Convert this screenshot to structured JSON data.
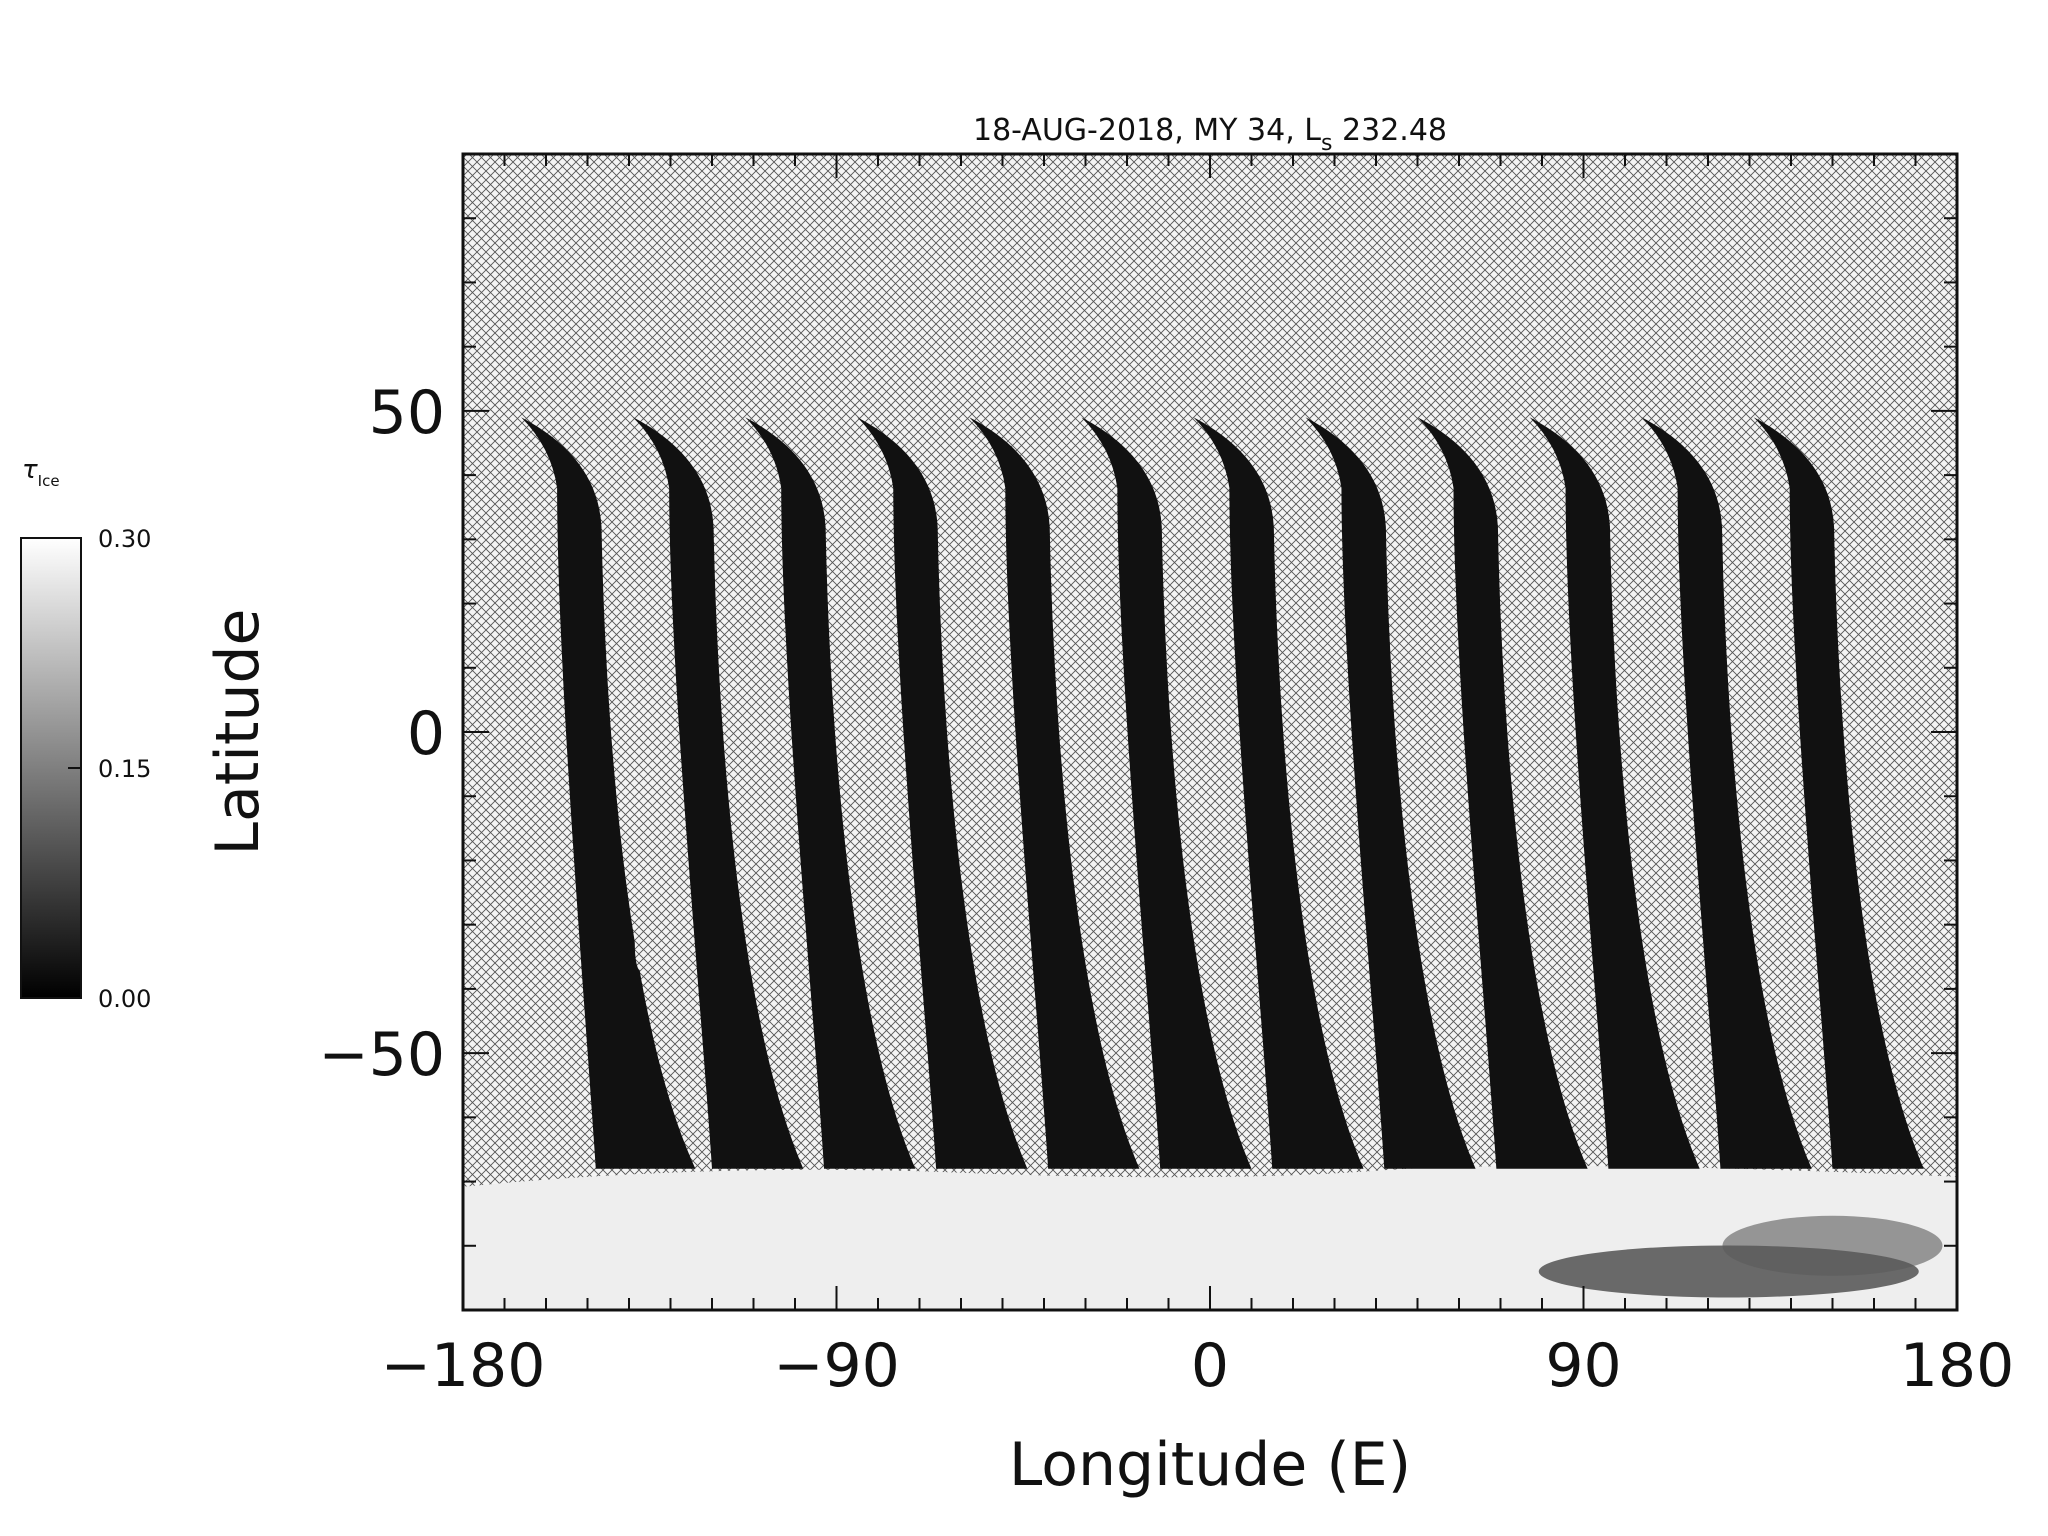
{
  "chart_data": {
    "type": "heatmap",
    "title": "18-AUG-2018, MY 34,  L",
    "title_sub": "s",
    "title_tail": " 232.48",
    "xlabel": "Longitude (E)",
    "ylabel": "Latitude",
    "xlim": [
      -180,
      180
    ],
    "ylim": [
      -90,
      90
    ],
    "x_ticks": [
      -180,
      -90,
      0,
      90,
      180
    ],
    "x_tick_labels": [
      "−180",
      "−90",
      "0",
      "90",
      "180"
    ],
    "y_ticks": [
      -50,
      0,
      50
    ],
    "y_tick_labels": [
      "−50",
      "0",
      "50"
    ],
    "grid": false,
    "colorbar": {
      "label": "τ",
      "label_sub": "Ice",
      "range": [
        0.0,
        0.3
      ],
      "tick_values": [
        0.0,
        0.15,
        0.3
      ],
      "tick_labels": [
        "0.00",
        "0.15",
        "0.30"
      ],
      "colormap": "grayscale"
    },
    "swaths": [
      {
        "lon_top": -166,
        "lon_bottom": -148,
        "lon_top_right": -150,
        "lon_bottom_right": -124
      },
      {
        "lon_top": -139,
        "lon_bottom": -120,
        "lon_top_right": -123,
        "lon_bottom_right": -98
      },
      {
        "lon_top": -112,
        "lon_bottom": -93,
        "lon_top_right": -96,
        "lon_bottom_right": -71
      },
      {
        "lon_top": -85,
        "lon_bottom": -66,
        "lon_top_right": -69,
        "lon_bottom_right": -44
      },
      {
        "lon_top": -58,
        "lon_bottom": -39,
        "lon_top_right": -42,
        "lon_bottom_right": -17
      },
      {
        "lon_top": -31,
        "lon_bottom": -12,
        "lon_top_right": -15,
        "lon_bottom_right": 10
      },
      {
        "lon_top": -4,
        "lon_bottom": 15,
        "lon_top_right": 12,
        "lon_bottom_right": 37
      },
      {
        "lon_top": 23,
        "lon_bottom": 42,
        "lon_top_right": 39,
        "lon_bottom_right": 64
      },
      {
        "lon_top": 50,
        "lon_bottom": 69,
        "lon_top_right": 66,
        "lon_bottom_right": 91
      },
      {
        "lon_top": 77,
        "lon_bottom": 96,
        "lon_top_right": 93,
        "lon_bottom_right": 118
      },
      {
        "lon_top": 104,
        "lon_bottom": 123,
        "lon_top_right": 120,
        "lon_bottom_right": 145
      },
      {
        "lon_top": 131,
        "lon_bottom": 150,
        "lon_top_right": 147,
        "lon_bottom_right": 172
      }
    ],
    "swath_lat_range": [
      -68,
      49
    ],
    "swath_value": 0.02,
    "polar_cloud_hood": {
      "lat_range": [
        -90,
        -68
      ],
      "value": 0.28
    }
  }
}
